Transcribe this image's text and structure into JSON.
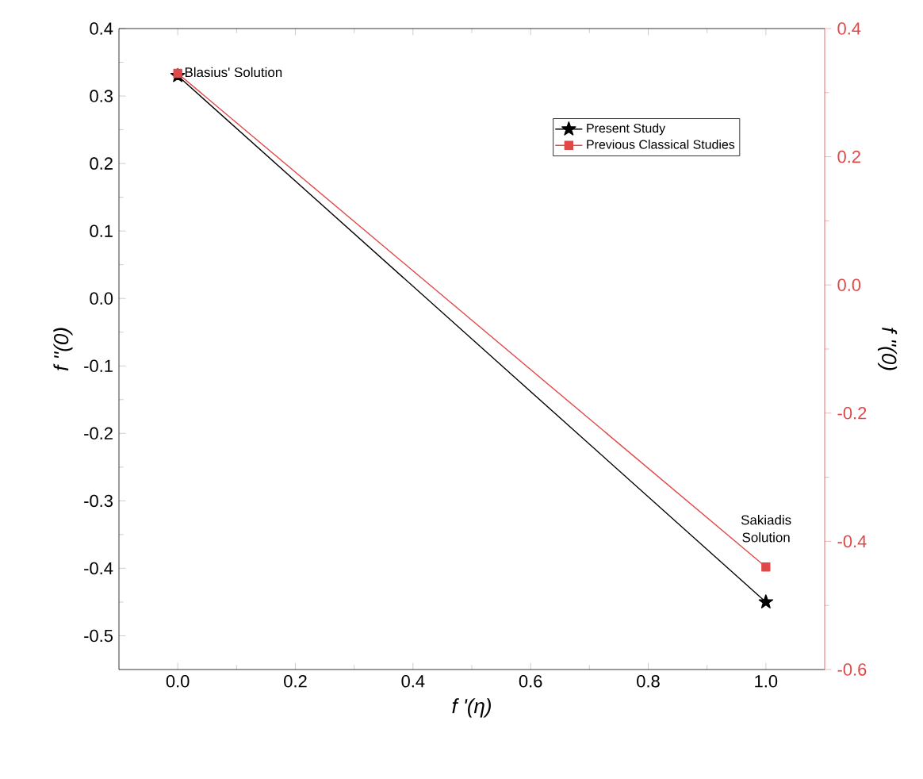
{
  "chart_data": {
    "type": "line",
    "xlabel": "f '(η)",
    "ylabel": "f ''(0)",
    "y2label": "f ''(0)",
    "x": [
      0,
      1
    ],
    "series": [
      {
        "name": "Present Study",
        "color": "#000000",
        "values": [
          0.33,
          -0.45
        ],
        "marker": "star"
      },
      {
        "name": "Previous Classical Studies",
        "color": "#e04848",
        "values": [
          0.33,
          -0.44
        ],
        "marker": "square",
        "axis": "y2"
      }
    ],
    "xlim": [
      -0.1,
      1.1
    ],
    "xticks": [
      {
        "value": 0,
        "label": "0.0"
      },
      0.2,
      0.4,
      0.6,
      0.8,
      {
        "value": 1,
        "label": "1.0"
      }
    ],
    "ylim": [
      -0.55,
      0.4
    ],
    "yticks": [
      -0.5,
      -0.4,
      -0.3,
      -0.2,
      -0.1,
      {
        "value": 0,
        "label": "0.0"
      },
      0.1,
      0.2,
      0.3,
      0.4
    ],
    "y2lim": [
      -0.6,
      0.4
    ],
    "y2ticks": [
      -0.6,
      -0.4,
      -0.2,
      {
        "value": 0,
        "label": "0.0"
      },
      0.2,
      0.4
    ],
    "annotations": [
      {
        "text": "Blasius' Solution",
        "x": 0,
        "y": 0.33
      },
      "Sakiadis Solution"
    ],
    "legend": "top right",
    "grid": false,
    "line_style": "solid"
  }
}
